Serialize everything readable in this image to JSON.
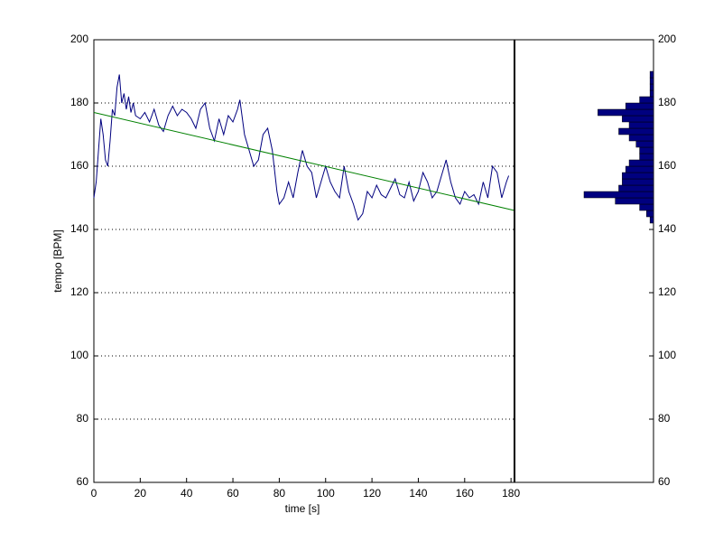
{
  "chart_data": [
    {
      "type": "line",
      "xlabel": "time [s]",
      "ylabel": "tempo [BPM]",
      "xlim": [
        0,
        181.5
      ],
      "ylim": [
        60,
        200
      ],
      "xticks": [
        0,
        20,
        40,
        60,
        80,
        100,
        120,
        140,
        160,
        180
      ],
      "yticks": [
        60,
        80,
        100,
        120,
        140,
        160,
        180,
        200
      ],
      "grid": true,
      "series": [
        {
          "color": "#00007f",
          "x": [
            0,
            1,
            2,
            3,
            4,
            5,
            6,
            7,
            8,
            9,
            10,
            11,
            12,
            13,
            14,
            15,
            16,
            17,
            18,
            20,
            22,
            24,
            26,
            28,
            30,
            32,
            34,
            36,
            38,
            40,
            42,
            44,
            46,
            48,
            50,
            52,
            54,
            56,
            58,
            60,
            62,
            63,
            65,
            67,
            69,
            71,
            73,
            75,
            77,
            79,
            80,
            82,
            84,
            86,
            88,
            90,
            92,
            94,
            96,
            98,
            100,
            102,
            104,
            106,
            108,
            110,
            112,
            114,
            116,
            118,
            120,
            122,
            124,
            126,
            128,
            130,
            132,
            134,
            136,
            138,
            140,
            142,
            144,
            146,
            148,
            150,
            152,
            154,
            156,
            158,
            160,
            162,
            164,
            166,
            168,
            170,
            172,
            174,
            176,
            178,
            179
          ],
          "values": [
            150,
            155,
            165,
            175,
            170,
            162,
            160,
            168,
            178,
            176,
            185,
            189,
            180,
            183,
            178,
            182,
            177,
            180,
            176,
            175,
            177,
            174,
            178,
            173,
            171,
            176,
            179,
            176,
            178,
            177,
            175,
            172,
            178,
            180,
            172,
            168,
            175,
            170,
            176,
            174,
            178,
            181,
            170,
            165,
            160,
            162,
            170,
            172,
            165,
            152,
            148,
            150,
            155,
            150,
            158,
            165,
            160,
            158,
            150,
            155,
            160,
            155,
            152,
            150,
            160,
            152,
            148,
            143,
            145,
            152,
            150,
            154,
            151,
            150,
            153,
            156,
            151,
            150,
            155,
            149,
            152,
            158,
            155,
            150,
            152,
            157,
            162,
            155,
            150,
            148,
            152,
            150,
            151,
            148,
            155,
            150,
            160,
            158,
            150,
            155,
            157
          ]
        },
        {
          "color": "#008000",
          "x": [
            0,
            181.5
          ],
          "values": [
            177,
            146
          ]
        }
      ]
    },
    {
      "type": "histogram",
      "color": "#00007f",
      "xlim": [
        0,
        40
      ],
      "ylim": [
        60,
        200
      ],
      "yticks": [
        60,
        80,
        100,
        120,
        140,
        160,
        180,
        200
      ],
      "bins": [
        142,
        144,
        146,
        148,
        150,
        152,
        154,
        156,
        158,
        160,
        162,
        164,
        166,
        168,
        170,
        172,
        174,
        176,
        178,
        180,
        182,
        184,
        186,
        188,
        190
      ],
      "counts": [
        1,
        2,
        4,
        11,
        20,
        10,
        9,
        9,
        8,
        7,
        4,
        4,
        5,
        7,
        10,
        7,
        9,
        16,
        8,
        4,
        1,
        1,
        1,
        1
      ]
    }
  ]
}
